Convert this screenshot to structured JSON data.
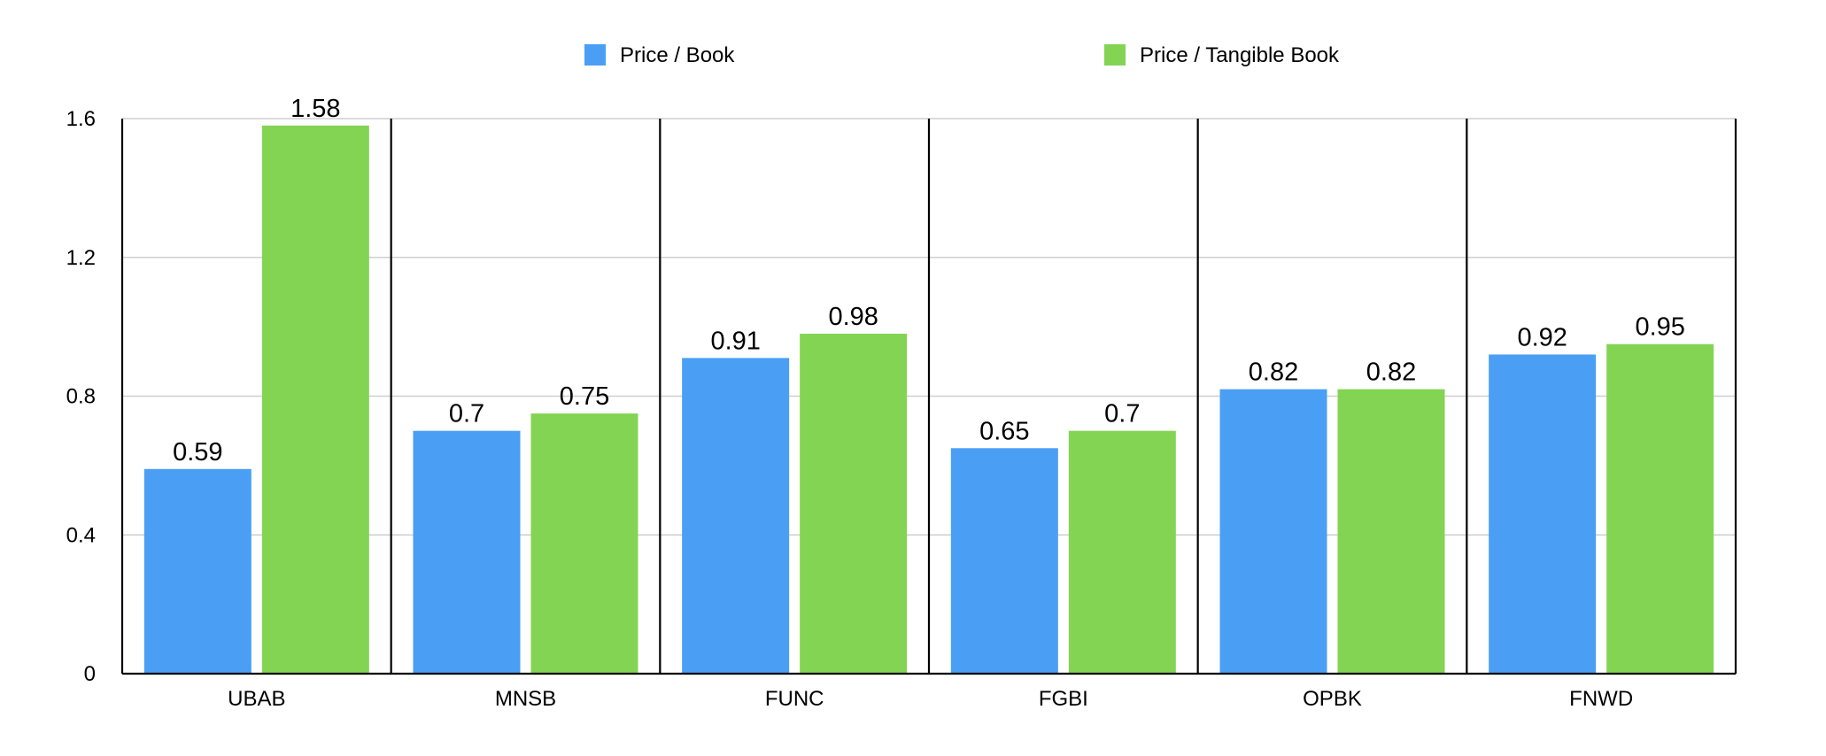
{
  "chart_data": {
    "type": "bar",
    "title": "",
    "xlabel": "",
    "ylabel": "",
    "categories": [
      "UBAB",
      "MNSB",
      "FUNC",
      "FGBI",
      "OPBK",
      "FNWD"
    ],
    "series": [
      {
        "name": "Price / Book",
        "color": "#4A9FF5",
        "values": [
          0.59,
          0.7,
          0.91,
          0.65,
          0.82,
          0.92
        ]
      },
      {
        "name": "Price / Tangible Book",
        "color": "#84D454",
        "values": [
          1.58,
          0.75,
          0.98,
          0.7,
          0.82,
          0.95
        ]
      }
    ],
    "ylim": [
      0,
      1.6
    ],
    "yticks": [
      0,
      0.4,
      0.8,
      1.2,
      1.6
    ],
    "ytick_labels": [
      "0",
      "0.4",
      "0.8",
      "1.2",
      "1.6"
    ],
    "grid": true,
    "legend_position": "top-center"
  }
}
